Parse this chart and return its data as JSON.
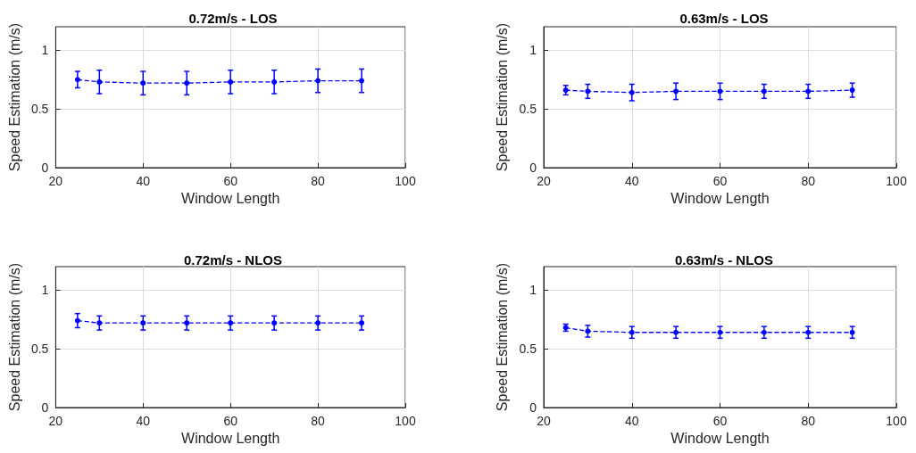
{
  "chart_data": [
    {
      "type": "line",
      "title": "0.72m/s - LOS",
      "xlabel": "Window Length",
      "ylabel": "Speed Estimation (m/s)",
      "x": [
        25,
        30,
        40,
        50,
        60,
        70,
        80,
        90
      ],
      "series": [
        {
          "color": "#0000ff",
          "values": [
            0.75,
            0.73,
            0.72,
            0.72,
            0.73,
            0.73,
            0.74,
            0.74
          ],
          "errors": [
            0.07,
            0.1,
            0.1,
            0.1,
            0.1,
            0.1,
            0.1,
            0.1
          ]
        }
      ],
      "xlim": [
        20,
        100
      ],
      "xticks": [
        20,
        40,
        60,
        80,
        100
      ],
      "ylim": [
        0,
        1.2
      ],
      "yticks": [
        0,
        0.5,
        1
      ],
      "grid": true,
      "marker": "circle",
      "line_style": "dashed"
    },
    {
      "type": "line",
      "title": "0.63m/s - LOS",
      "xlabel": "Window Length",
      "ylabel": "Speed Estimation (m/s)",
      "x": [
        25,
        30,
        40,
        50,
        60,
        70,
        80,
        90
      ],
      "series": [
        {
          "color": "#0000ff",
          "values": [
            0.66,
            0.65,
            0.64,
            0.65,
            0.65,
            0.65,
            0.65,
            0.66
          ],
          "errors": [
            0.04,
            0.06,
            0.07,
            0.07,
            0.07,
            0.06,
            0.06,
            0.06
          ]
        }
      ],
      "xlim": [
        20,
        100
      ],
      "xticks": [
        20,
        40,
        60,
        80,
        100
      ],
      "ylim": [
        0,
        1.2
      ],
      "yticks": [
        0,
        0.5,
        1
      ],
      "grid": true,
      "marker": "circle",
      "line_style": "dashed"
    },
    {
      "type": "line",
      "title": "0.72m/s - NLOS",
      "xlabel": "Window Length",
      "ylabel": "Speed Estimation (m/s)",
      "x": [
        25,
        30,
        40,
        50,
        60,
        70,
        80,
        90
      ],
      "series": [
        {
          "color": "#0000ff",
          "values": [
            0.74,
            0.72,
            0.72,
            0.72,
            0.72,
            0.72,
            0.72,
            0.72
          ],
          "errors": [
            0.06,
            0.06,
            0.06,
            0.06,
            0.06,
            0.06,
            0.06,
            0.06
          ]
        }
      ],
      "xlim": [
        20,
        100
      ],
      "xticks": [
        20,
        40,
        60,
        80,
        100
      ],
      "ylim": [
        0,
        1.2
      ],
      "yticks": [
        0,
        0.5,
        1
      ],
      "grid": true,
      "marker": "circle",
      "line_style": "dashed"
    },
    {
      "type": "line",
      "title": "0.63m/s - NLOS",
      "xlabel": "Window Length",
      "ylabel": "Speed Estimation (m/s)",
      "x": [
        25,
        30,
        40,
        50,
        60,
        70,
        80,
        90
      ],
      "series": [
        {
          "color": "#0000ff",
          "values": [
            0.68,
            0.65,
            0.64,
            0.64,
            0.64,
            0.64,
            0.64,
            0.64
          ],
          "errors": [
            0.03,
            0.05,
            0.05,
            0.05,
            0.05,
            0.05,
            0.05,
            0.05
          ]
        }
      ],
      "xlim": [
        20,
        100
      ],
      "xticks": [
        20,
        40,
        60,
        80,
        100
      ],
      "ylim": [
        0,
        1.2
      ],
      "yticks": [
        0,
        0.5,
        1
      ],
      "grid": true,
      "marker": "circle",
      "line_style": "dashed"
    }
  ]
}
